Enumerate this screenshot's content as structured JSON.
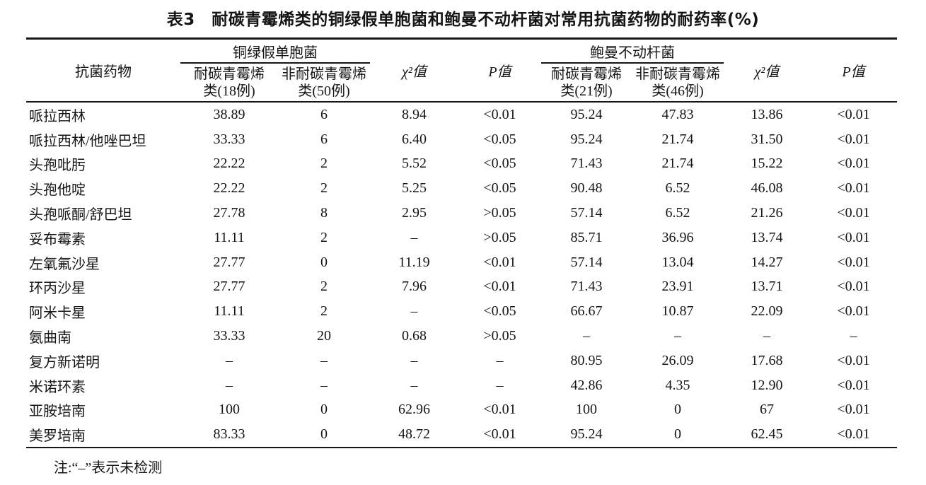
{
  "title": "表3　耐碳青霉烯类的铜绿假单胞菌和鲍曼不动杆菌对常用抗菌药物的耐药率(%)",
  "table": {
    "col_drug": "抗菌药物",
    "group1": {
      "label": "铜绿假单胞菌",
      "sub1": "耐碳青霉烯\n类(18例)",
      "sub2": "非耐碳青霉烯\n类(50例)"
    },
    "group2": {
      "label": "鲍曼不动杆菌",
      "sub1": "耐碳青霉烯\n类(21例)",
      "sub2": "非耐碳青霉烯\n类(46例)"
    },
    "chi2_label": "χ²值",
    "p_label": "P值",
    "rows": [
      {
        "drug": "哌拉西林",
        "values": [
          "38.89",
          "6",
          "8.94",
          "<0.01",
          "95.24",
          "47.83",
          "13.86",
          "<0.01"
        ]
      },
      {
        "drug": "哌拉西林/他唑巴坦",
        "values": [
          "33.33",
          "6",
          "6.40",
          "<0.05",
          "95.24",
          "21.74",
          "31.50",
          "<0.01"
        ]
      },
      {
        "drug": "头孢吡肟",
        "values": [
          "22.22",
          "2",
          "5.52",
          "<0.05",
          "71.43",
          "21.74",
          "15.22",
          "<0.01"
        ]
      },
      {
        "drug": "头孢他啶",
        "values": [
          "22.22",
          "2",
          "5.25",
          "<0.05",
          "90.48",
          "6.52",
          "46.08",
          "<0.01"
        ]
      },
      {
        "drug": "头孢哌酮/舒巴坦",
        "values": [
          "27.78",
          "8",
          "2.95",
          ">0.05",
          "57.14",
          "6.52",
          "21.26",
          "<0.01"
        ]
      },
      {
        "drug": "妥布霉素",
        "values": [
          "11.11",
          "2",
          "–",
          ">0.05",
          "85.71",
          "36.96",
          "13.74",
          "<0.01"
        ]
      },
      {
        "drug": "左氧氟沙星",
        "values": [
          "27.77",
          "0",
          "11.19",
          "<0.01",
          "57.14",
          "13.04",
          "14.27",
          "<0.01"
        ]
      },
      {
        "drug": "环丙沙星",
        "values": [
          "27.77",
          "2",
          "7.96",
          "<0.01",
          "71.43",
          "23.91",
          "13.71",
          "<0.01"
        ]
      },
      {
        "drug": "阿米卡星",
        "values": [
          "11.11",
          "2",
          "–",
          "<0.05",
          "66.67",
          "10.87",
          "22.09",
          "<0.01"
        ]
      },
      {
        "drug": "氨曲南",
        "values": [
          "33.33",
          "20",
          "0.68",
          ">0.05",
          "–",
          "–",
          "–",
          "–"
        ]
      },
      {
        "drug": "复方新诺明",
        "values": [
          "–",
          "–",
          "–",
          "–",
          "80.95",
          "26.09",
          "17.68",
          "<0.01"
        ]
      },
      {
        "drug": "米诺环素",
        "values": [
          "–",
          "–",
          "–",
          "–",
          "42.86",
          "4.35",
          "12.90",
          "<0.01"
        ]
      },
      {
        "drug": "亚胺培南",
        "values": [
          "100",
          "0",
          "62.96",
          "<0.01",
          "100",
          "0",
          "67",
          "<0.01"
        ]
      },
      {
        "drug": "美罗培南",
        "values": [
          "83.33",
          "0",
          "48.72",
          "<0.01",
          "95.24",
          "0",
          "62.45",
          "<0.01"
        ]
      }
    ],
    "note": "注:“–”表示未检测"
  }
}
